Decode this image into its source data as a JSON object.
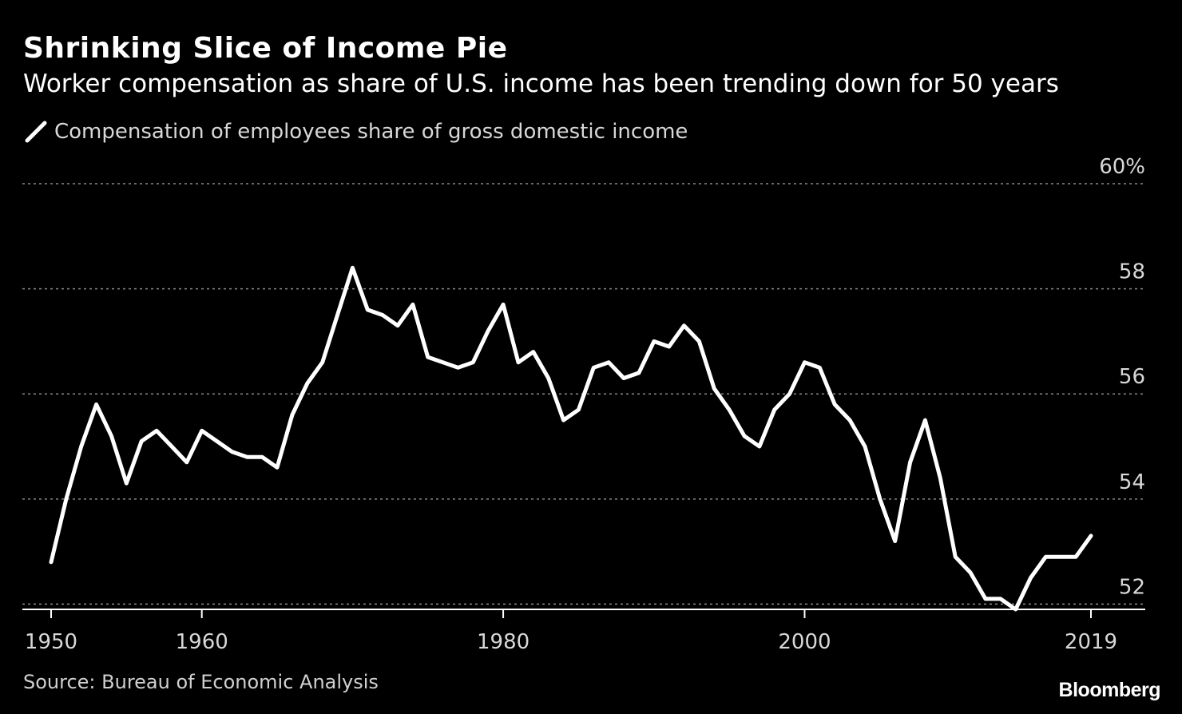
{
  "title": "Shrinking Slice of Income Pie",
  "subtitle": "Worker compensation as share of U.S. income has been trending down for 50 years",
  "source": "Source: Bureau of Economic Analysis",
  "brand": "Bloomberg",
  "colors": {
    "background": "#000000",
    "line": "#ffffff",
    "grid": "#8a8a8a"
  },
  "chart_data": {
    "type": "line",
    "series": [
      {
        "name": "Compensation of employees share of gross domestic income",
        "x": [
          1950,
          1951,
          1952,
          1953,
          1954,
          1955,
          1956,
          1957,
          1958,
          1959,
          1960,
          1961,
          1962,
          1963,
          1964,
          1965,
          1966,
          1967,
          1968,
          1969,
          1970,
          1971,
          1972,
          1973,
          1974,
          1975,
          1976,
          1977,
          1978,
          1979,
          1980,
          1981,
          1982,
          1983,
          1984,
          1985,
          1986,
          1987,
          1988,
          1989,
          1990,
          1991,
          1992,
          1993,
          1994,
          1995,
          1996,
          1997,
          1998,
          1999,
          2000,
          2001,
          2002,
          2003,
          2004,
          2005,
          2006,
          2007,
          2008,
          2009,
          2010,
          2011,
          2012,
          2013,
          2014,
          2015,
          2016,
          2017,
          2018,
          2019
        ],
        "values": [
          52.8,
          54.0,
          55.0,
          55.8,
          55.2,
          54.3,
          55.1,
          55.3,
          55.0,
          54.7,
          55.3,
          55.1,
          54.9,
          54.8,
          54.8,
          54.6,
          55.6,
          56.2,
          56.6,
          57.5,
          58.4,
          57.6,
          57.5,
          57.3,
          57.7,
          56.7,
          56.6,
          56.5,
          56.6,
          57.2,
          57.7,
          56.6,
          56.8,
          56.3,
          55.5,
          55.7,
          56.5,
          56.6,
          56.3,
          56.4,
          57.0,
          56.9,
          57.3,
          57.0,
          56.1,
          55.7,
          55.2,
          55.0,
          55.7,
          56.0,
          56.6,
          56.5,
          55.8,
          55.5,
          55.0,
          54.0,
          53.2,
          54.7,
          55.5,
          54.4,
          52.9,
          52.6,
          52.1,
          52.1,
          51.9,
          52.5,
          52.9,
          52.9,
          52.9,
          53.3
        ]
      }
    ],
    "legend": "Compensation of employees share of gross domestic income",
    "legend_position": "top-left",
    "xticks": [
      1950,
      1960,
      1980,
      2000,
      2019
    ],
    "xtick_labels": [
      "1950",
      "1960",
      "1980",
      "2000",
      "2019"
    ],
    "yticks": [
      52,
      54,
      56,
      58,
      60
    ],
    "ytick_labels": [
      "52",
      "54",
      "56",
      "58",
      "60%"
    ],
    "xlim": [
      1950,
      2019
    ],
    "ylim": [
      51.9,
      60
    ],
    "grid": "horizontal dotted"
  }
}
